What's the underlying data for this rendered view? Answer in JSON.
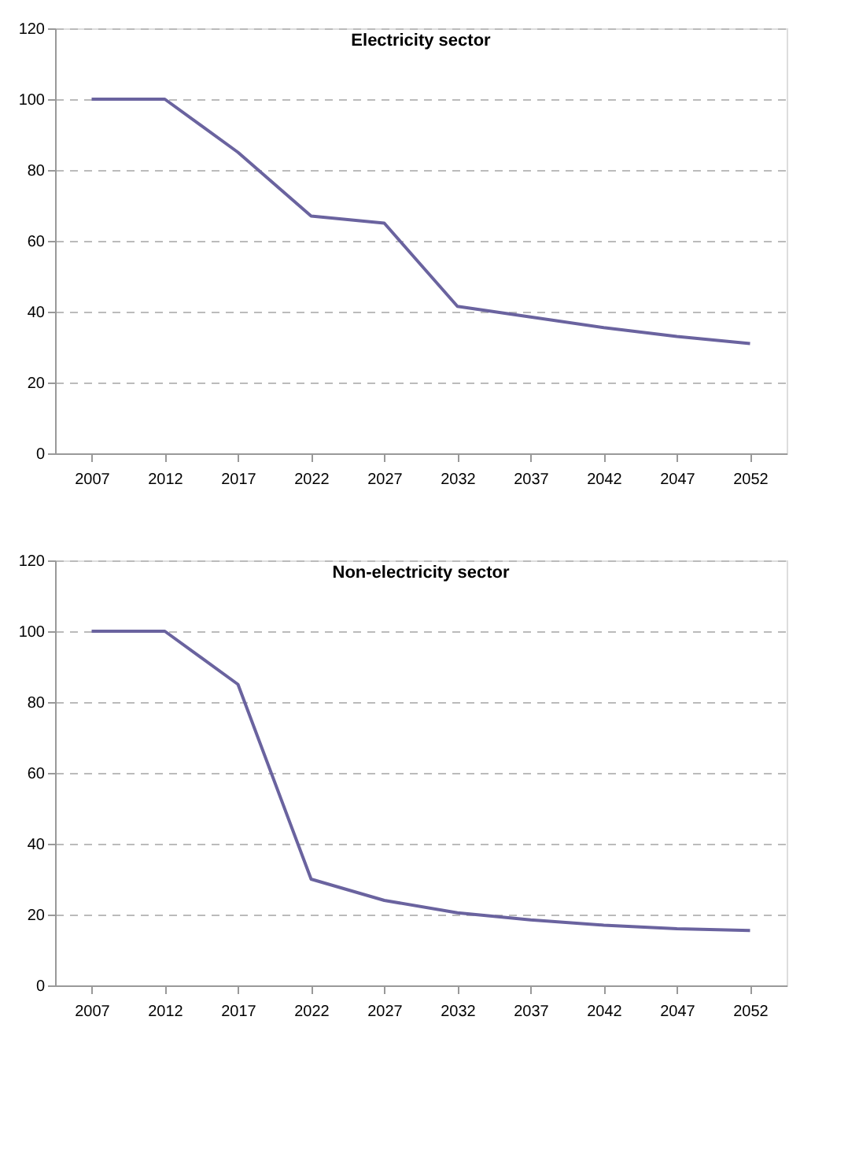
{
  "chart_data": [
    {
      "type": "line",
      "title": "Electricity  sector",
      "categories": [
        "2007",
        "2012",
        "2017",
        "2022",
        "2027",
        "2032",
        "2037",
        "2042",
        "2047",
        "2052"
      ],
      "series": [
        {
          "color": "#6a639f",
          "values": [
            100,
            100,
            85,
            67,
            65,
            41.5,
            38.5,
            35.5,
            33,
            31
          ]
        }
      ],
      "ylim": [
        0,
        120
      ],
      "yticks": [
        0,
        20,
        40,
        60,
        80,
        100,
        120
      ],
      "grid": "y",
      "line_style": "solid",
      "marker": "none"
    },
    {
      "type": "line",
      "title": "Non-electricity sector",
      "categories": [
        "2007",
        "2012",
        "2017",
        "2022",
        "2027",
        "2032",
        "2037",
        "2042",
        "2047",
        "2052"
      ],
      "series": [
        {
          "color": "#6a639f",
          "values": [
            100,
            100,
            85,
            30,
            24,
            20.5,
            18.5,
            17,
            16,
            15.5
          ]
        }
      ],
      "ylim": [
        0,
        120
      ],
      "yticks": [
        0,
        20,
        40,
        60,
        80,
        100,
        120
      ],
      "grid": "y",
      "line_style": "solid",
      "marker": "none"
    }
  ]
}
